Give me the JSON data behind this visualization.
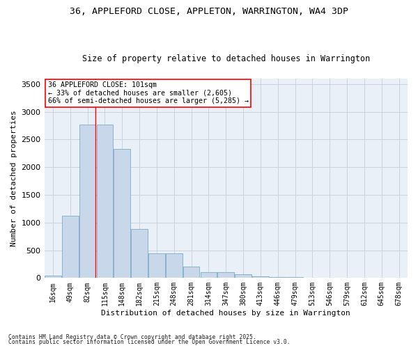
{
  "title_line1": "36, APPLEFORD CLOSE, APPLETON, WARRINGTON, WA4 3DP",
  "title_line2": "Size of property relative to detached houses in Warrington",
  "xlabel": "Distribution of detached houses by size in Warrington",
  "ylabel": "Number of detached properties",
  "categories": [
    "16sqm",
    "49sqm",
    "82sqm",
    "115sqm",
    "148sqm",
    "182sqm",
    "215sqm",
    "248sqm",
    "281sqm",
    "314sqm",
    "347sqm",
    "380sqm",
    "413sqm",
    "446sqm",
    "479sqm",
    "513sqm",
    "546sqm",
    "579sqm",
    "612sqm",
    "645sqm",
    "678sqm"
  ],
  "values": [
    40,
    1120,
    2770,
    2770,
    2330,
    880,
    440,
    440,
    200,
    110,
    100,
    65,
    30,
    20,
    15,
    10,
    5,
    3,
    2,
    1,
    1
  ],
  "bar_color": "#c8d8ea",
  "bar_edge_color": "#7aaac8",
  "grid_color": "#c8d4e0",
  "background_color": "#ffffff",
  "plot_bg_color": "#eaf0f8",
  "annotation_line1": "36 APPLEFORD CLOSE: 101sqm",
  "annotation_line2": "← 33% of detached houses are smaller (2,605)",
  "annotation_line3": "66% of semi-detached houses are larger (5,285) →",
  "red_line_x": 2.45,
  "ylim": [
    0,
    3600
  ],
  "yticks": [
    0,
    500,
    1000,
    1500,
    2000,
    2500,
    3000,
    3500
  ],
  "footnote1": "Contains HM Land Registry data © Crown copyright and database right 2025.",
  "footnote2": "Contains public sector information licensed under the Open Government Licence v3.0."
}
